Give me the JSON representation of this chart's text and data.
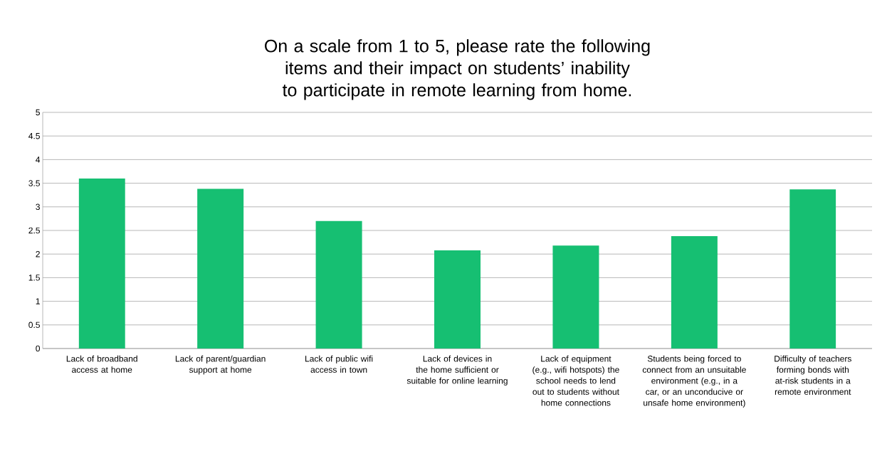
{
  "chart_data": {
    "type": "bar",
    "title": "On a scale from 1 to 5, please rate the following items and their impact on students’ inability to participate in remote learning from home.",
    "categories": [
      "Lack of broadband access at home",
      "Lack of parent/guardian support at home",
      "Lack of public wifi access in town",
      "Lack of devices in the home sufficient or suitable for online learning",
      "Lack of equipment (e.g., wifi hotspots) the school needs to lend out to students without home connections",
      "Students being forced to connect from an unsuitable environment (e.g., in a car, or an unconducive or unsafe home environment)",
      "Difficulty of teachers forming bonds with at-risk students in a remote environment"
    ],
    "values": [
      3.6,
      3.38,
      2.7,
      2.08,
      2.18,
      2.38,
      3.37
    ],
    "color": "#16bf72",
    "ylim": [
      0,
      5
    ],
    "yticks": [
      0,
      0.5,
      1,
      1.5,
      2,
      2.5,
      3,
      3.5,
      4,
      4.5,
      5
    ],
    "grid": "y"
  }
}
